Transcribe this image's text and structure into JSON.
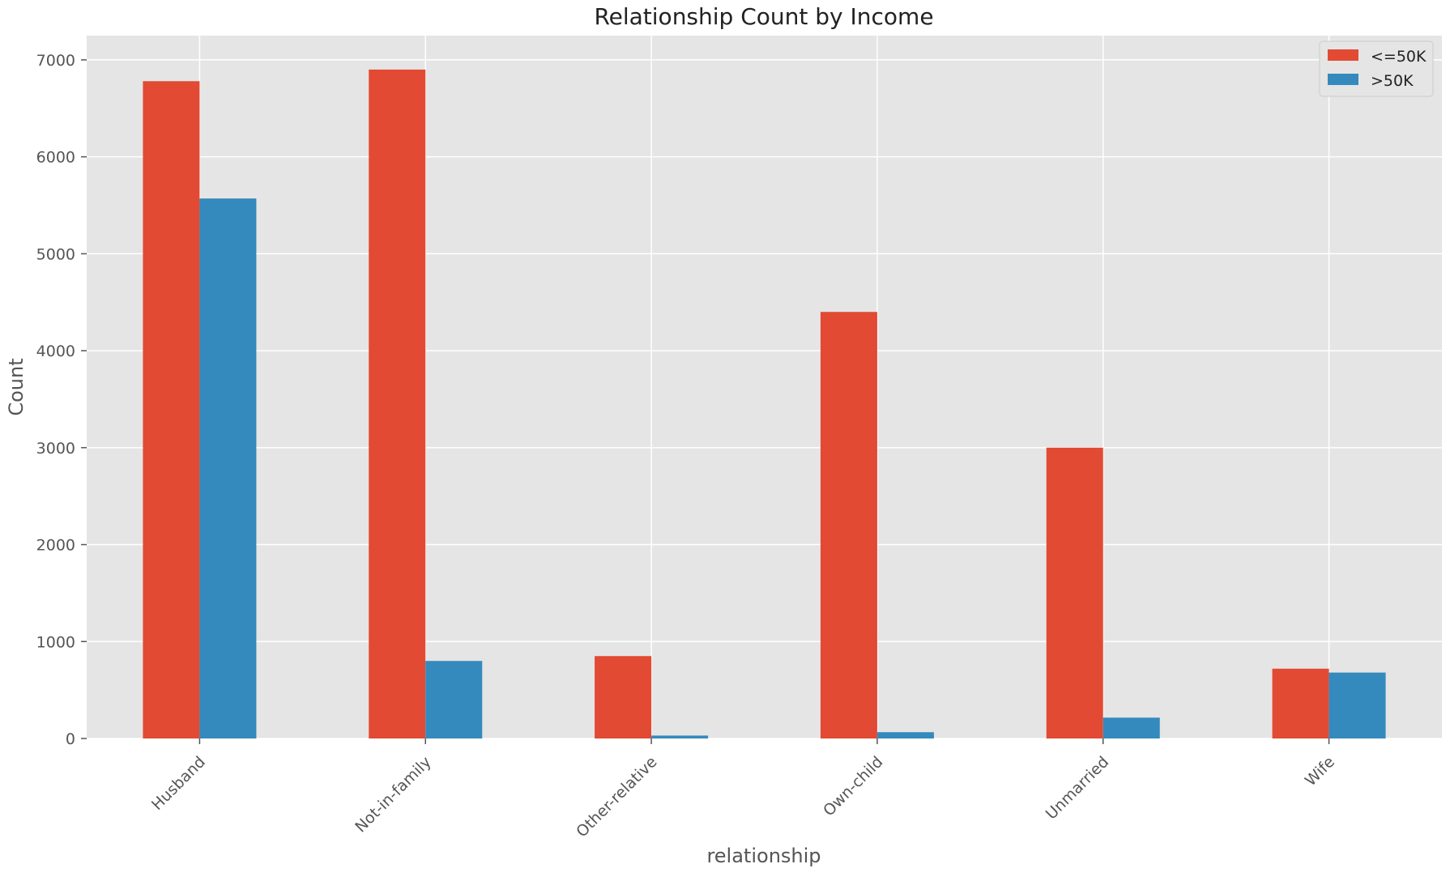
{
  "chart_data": {
    "type": "bar",
    "title": "Relationship Count by Income",
    "xlabel": "relationship",
    "ylabel": "Count",
    "categories": [
      "Husband",
      "Not-in-family",
      "Other-relative",
      "Own-child",
      "Unmarried",
      "Wife"
    ],
    "series": [
      {
        "name": "<=50K",
        "color": "#E24A33",
        "values": [
          6780,
          6900,
          850,
          4400,
          3000,
          720
        ]
      },
      {
        "name": ">50K",
        "color": "#348ABD",
        "values": [
          5570,
          800,
          30,
          65,
          215,
          680
        ]
      }
    ],
    "ylim": [
      0,
      7250
    ],
    "yticks": [
      0,
      1000,
      2000,
      3000,
      4000,
      5000,
      6000,
      7000
    ],
    "grid": true,
    "legend_position": "top-right",
    "style": {
      "background": "#E5E5E5",
      "grid_color": "#FFFFFF"
    }
  }
}
